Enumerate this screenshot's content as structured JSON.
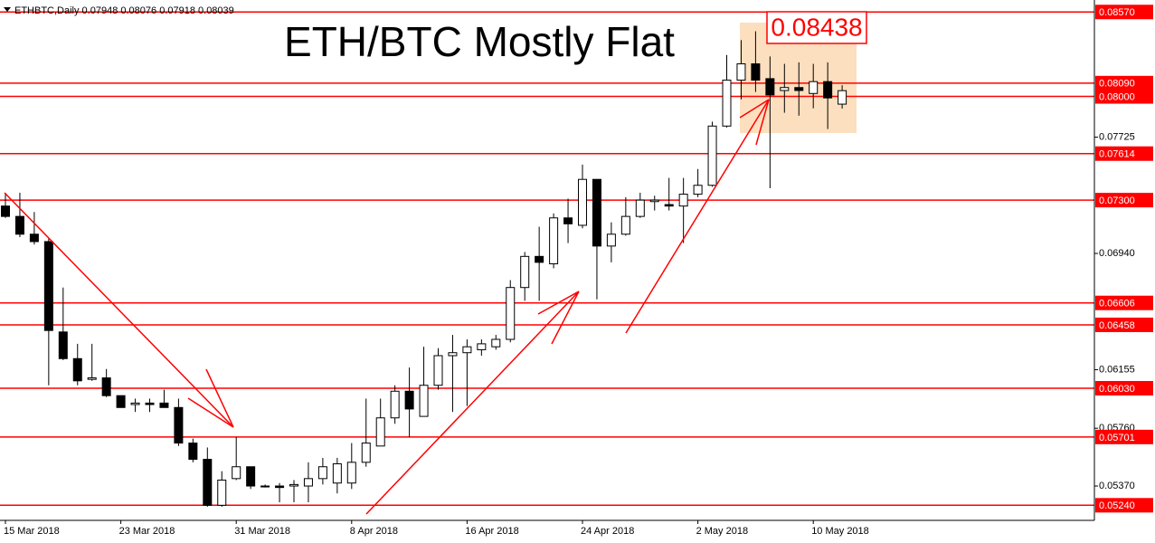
{
  "chart_data": {
    "type": "candlestick",
    "header": "ETHBTC,Daily  0.07948 0.08076 0.07918 0.08039",
    "title": "ETH/BTC Mostly Flat",
    "peak_label": 0.08438,
    "categories": [
      "15 Mar 2018",
      null,
      null,
      null,
      null,
      null,
      null,
      null,
      "23 Mar 2018",
      null,
      null,
      null,
      null,
      null,
      null,
      null,
      "31 Mar 2018",
      null,
      null,
      null,
      null,
      null,
      null,
      null,
      "8 Apr 2018",
      null,
      null,
      null,
      null,
      null,
      null,
      null,
      "16 Apr 2018",
      null,
      null,
      null,
      null,
      null,
      null,
      null,
      "24 Apr 2018",
      null,
      null,
      null,
      null,
      null,
      null,
      null,
      "2 May 2018",
      null,
      null,
      null,
      null,
      null,
      null,
      null,
      "10 May 2018",
      null,
      null
    ],
    "open": [
      0.0726,
      0.0719,
      0.0707,
      0.0702,
      0.0641,
      0.0623,
      0.0609,
      0.061,
      0.0598,
      0.0592,
      0.0593,
      0.0593,
      0.059,
      0.0566,
      0.0555,
      0.0524,
      0.0542,
      0.055,
      0.0537,
      0.0537,
      0.0537,
      0.0537,
      0.0542,
      0.0539,
      0.0539,
      0.0553,
      0.0564,
      0.0583,
      0.0601,
      0.0584,
      0.0605,
      0.0625,
      0.0627,
      0.0629,
      0.0631,
      0.0636,
      0.0671,
      0.0692,
      0.0687,
      0.0718,
      0.0713,
      0.0744,
      0.0699,
      0.0707,
      0.0719,
      0.0729,
      0.0727,
      0.0726,
      0.0734,
      0.074,
      0.078,
      0.0811,
      0.0822,
      0.0812,
      0.0804,
      0.0806,
      0.0802,
      0.081,
      0.07948
    ],
    "high": [
      0.0735,
      0.0735,
      0.0722,
      0.0704,
      0.0671,
      0.0633,
      0.0633,
      0.0616,
      0.0598,
      0.0596,
      0.0596,
      0.0602,
      0.0596,
      0.0569,
      0.0563,
      0.0547,
      0.057,
      0.055,
      0.0538,
      0.0539,
      0.0541,
      0.0553,
      0.0556,
      0.0556,
      0.0566,
      0.0596,
      0.0596,
      0.0605,
      0.0617,
      0.0631,
      0.063,
      0.0639,
      0.0636,
      0.0636,
      0.0639,
      0.0676,
      0.0695,
      0.0712,
      0.0721,
      0.0731,
      0.0754,
      0.0744,
      0.0715,
      0.0732,
      0.0735,
      0.0733,
      0.0745,
      0.0745,
      0.0751,
      0.0783,
      0.0828,
      0.0838,
      0.0844,
      0.0827,
      0.0822,
      0.0823,
      0.0822,
      0.0823,
      0.08076
    ],
    "low": [
      0.0718,
      0.0705,
      0.07,
      0.0605,
      0.0622,
      0.0605,
      0.0608,
      0.0597,
      0.059,
      0.0587,
      0.0587,
      0.059,
      0.0564,
      0.0553,
      0.0523,
      0.0523,
      0.0541,
      0.0535,
      0.0536,
      0.0526,
      0.0526,
      0.0526,
      0.0538,
      0.0532,
      0.0535,
      0.055,
      0.0564,
      0.0579,
      0.057,
      0.0584,
      0.0602,
      0.0587,
      0.0591,
      0.0625,
      0.0629,
      0.0634,
      0.0662,
      0.0662,
      0.0684,
      0.0701,
      0.0711,
      0.0663,
      0.0688,
      0.0706,
      0.0718,
      0.0723,
      0.0723,
      0.0701,
      0.0732,
      0.0739,
      0.0779,
      0.0798,
      0.0803,
      0.0738,
      0.0789,
      0.0787,
      0.0792,
      0.0778,
      0.07918
    ],
    "close": [
      0.0719,
      0.0707,
      0.0702,
      0.0642,
      0.0623,
      0.0608,
      0.061,
      0.0598,
      0.059,
      0.0593,
      0.0592,
      0.059,
      0.0566,
      0.0555,
      0.0524,
      0.0541,
      0.055,
      0.0537,
      0.0537,
      0.0536,
      0.0538,
      0.0542,
      0.055,
      0.0552,
      0.0553,
      0.0566,
      0.0583,
      0.0601,
      0.0589,
      0.0605,
      0.0625,
      0.0627,
      0.0631,
      0.0633,
      0.0636,
      0.0671,
      0.0692,
      0.0688,
      0.0718,
      0.0714,
      0.0744,
      0.0699,
      0.0707,
      0.0719,
      0.073,
      0.073,
      0.0726,
      0.0734,
      0.074,
      0.078,
      0.0811,
      0.0822,
      0.0811,
      0.0801,
      0.0806,
      0.0804,
      0.081,
      0.0799,
      0.08039
    ],
    "up_color": "#ffffff",
    "down_color": "#000000",
    "level_color": "#ff0000",
    "ylim": [
      0.05138,
      0.08651
    ],
    "yticks": [
      {
        "value": 0.0537,
        "label": "0.05370"
      },
      {
        "value": 0.0576,
        "label": "0.05760"
      },
      {
        "value": 0.06155,
        "label": "0.06155"
      },
      {
        "value": 0.0694,
        "label": "0.06940"
      },
      {
        "value": 0.07725,
        "label": "0.07725"
      }
    ],
    "levels": [
      {
        "value": 0.0857,
        "label": "0.08570"
      },
      {
        "value": 0.0809,
        "label": "0.08090"
      },
      {
        "value": 0.08,
        "label": "0.08000"
      },
      {
        "value": 0.07614,
        "label": "0.07614"
      },
      {
        "value": 0.073,
        "label": "0.07300"
      },
      {
        "value": 0.06606,
        "label": "0.06606"
      },
      {
        "value": 0.06458,
        "label": "0.06458"
      },
      {
        "value": 0.0603,
        "label": "0.06030"
      },
      {
        "value": 0.05701,
        "label": "0.05701"
      },
      {
        "value": 0.0524,
        "label": "0.05240"
      }
    ]
  }
}
